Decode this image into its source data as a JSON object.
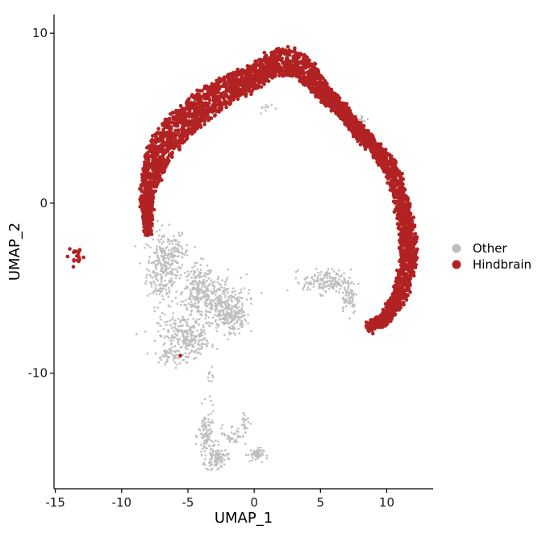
{
  "chart_data": {
    "type": "scatter",
    "title": "",
    "xlabel": "UMAP_1",
    "ylabel": "UMAP_2",
    "xlim": [
      -15.1,
      13.5
    ],
    "ylim": [
      -16.8,
      11.1
    ],
    "x_ticks": [
      -15,
      -10,
      -5,
      0,
      5,
      10
    ],
    "y_ticks": [
      -10,
      0,
      10
    ],
    "x_tick_labels": [
      "-15",
      "-10",
      "-5",
      "0",
      "5",
      "10"
    ],
    "y_tick_labels": [
      "-10",
      "0",
      "10"
    ],
    "grid": false,
    "legend_position": "right",
    "series": [
      {
        "name": "Other",
        "color": "#bebebe",
        "clusters": [
          {
            "x": -6.9,
            "y": -3.8,
            "sx": 0.6,
            "sy": 1.1,
            "n": 260
          },
          {
            "x": -5.8,
            "y": -2.9,
            "sx": 0.4,
            "sy": 0.5,
            "n": 60
          },
          {
            "x": -4.2,
            "y": -5.2,
            "sx": 0.6,
            "sy": 0.8,
            "n": 200
          },
          {
            "x": -2.6,
            "y": -6.0,
            "sx": 1.0,
            "sy": 0.9,
            "n": 280
          },
          {
            "x": -1.6,
            "y": -6.6,
            "sx": 0.5,
            "sy": 0.5,
            "n": 120
          },
          {
            "x": -5.5,
            "y": -7.8,
            "sx": 0.9,
            "sy": 0.6,
            "n": 180
          },
          {
            "x": -4.5,
            "y": -8.2,
            "sx": 0.5,
            "sy": 0.4,
            "n": 80
          },
          {
            "x": -6.4,
            "y": -9.0,
            "sx": 0.4,
            "sy": 0.3,
            "n": 40
          },
          {
            "x": -3.6,
            "y": -13.7,
            "sx": 0.3,
            "sy": 0.8,
            "n": 110
          },
          {
            "x": -2.8,
            "y": -15.0,
            "sx": 0.4,
            "sy": 0.3,
            "n": 90
          },
          {
            "x": -1.6,
            "y": -13.6,
            "sx": 0.5,
            "sy": 0.3,
            "n": 40
          },
          {
            "x": -0.7,
            "y": -12.8,
            "sx": 0.2,
            "sy": 0.3,
            "n": 20
          },
          {
            "x": 0.1,
            "y": -14.8,
            "sx": 0.3,
            "sy": 0.2,
            "n": 50
          },
          {
            "x": -3.4,
            "y": -10.3,
            "sx": 0.15,
            "sy": 0.2,
            "n": 8
          },
          {
            "x": 5.5,
            "y": -4.6,
            "sx": 0.9,
            "sy": 0.35,
            "n": 160
          },
          {
            "x": 7.1,
            "y": -5.5,
            "sx": 0.35,
            "sy": 0.5,
            "n": 60
          },
          {
            "x": 8.2,
            "y": 4.9,
            "sx": 0.25,
            "sy": 0.15,
            "n": 15
          },
          {
            "x": 1.0,
            "y": 5.6,
            "sx": 0.3,
            "sy": 0.15,
            "n": 10
          }
        ]
      },
      {
        "name": "Hindbrain",
        "color": "#b22222",
        "arc": [
          [
            -8.0,
            -1.8,
            0.2
          ],
          [
            -8.1,
            0.6,
            0.5
          ],
          [
            -7.4,
            2.6,
            0.9
          ],
          [
            -6.4,
            3.9,
            1.0
          ],
          [
            -5.0,
            5.0,
            0.9
          ],
          [
            -3.4,
            6.0,
            0.9
          ],
          [
            -1.8,
            6.8,
            0.8
          ],
          [
            -0.3,
            7.3,
            0.7
          ],
          [
            1.3,
            8.2,
            0.7
          ],
          [
            2.7,
            8.4,
            0.8
          ],
          [
            4.0,
            7.7,
            0.7
          ],
          [
            5.2,
            6.5,
            0.5
          ],
          [
            6.5,
            5.6,
            0.4
          ],
          [
            7.8,
            4.3,
            0.4
          ],
          [
            9.1,
            3.3,
            0.4
          ],
          [
            10.4,
            2.0,
            0.5
          ],
          [
            11.1,
            0.2,
            0.5
          ],
          [
            11.6,
            -1.8,
            0.6
          ],
          [
            11.6,
            -3.8,
            0.6
          ],
          [
            10.9,
            -5.6,
            0.5
          ],
          [
            9.9,
            -6.8,
            0.35
          ],
          [
            8.6,
            -7.3,
            0.25
          ]
        ],
        "arc_points": 3800,
        "clusters": [
          {
            "x": -13.4,
            "y": -3.1,
            "sx": 0.3,
            "sy": 0.3,
            "n": 18
          },
          {
            "x": -5.6,
            "y": -9.0,
            "sx": 0.05,
            "sy": 0.05,
            "n": 1
          }
        ]
      }
    ]
  }
}
